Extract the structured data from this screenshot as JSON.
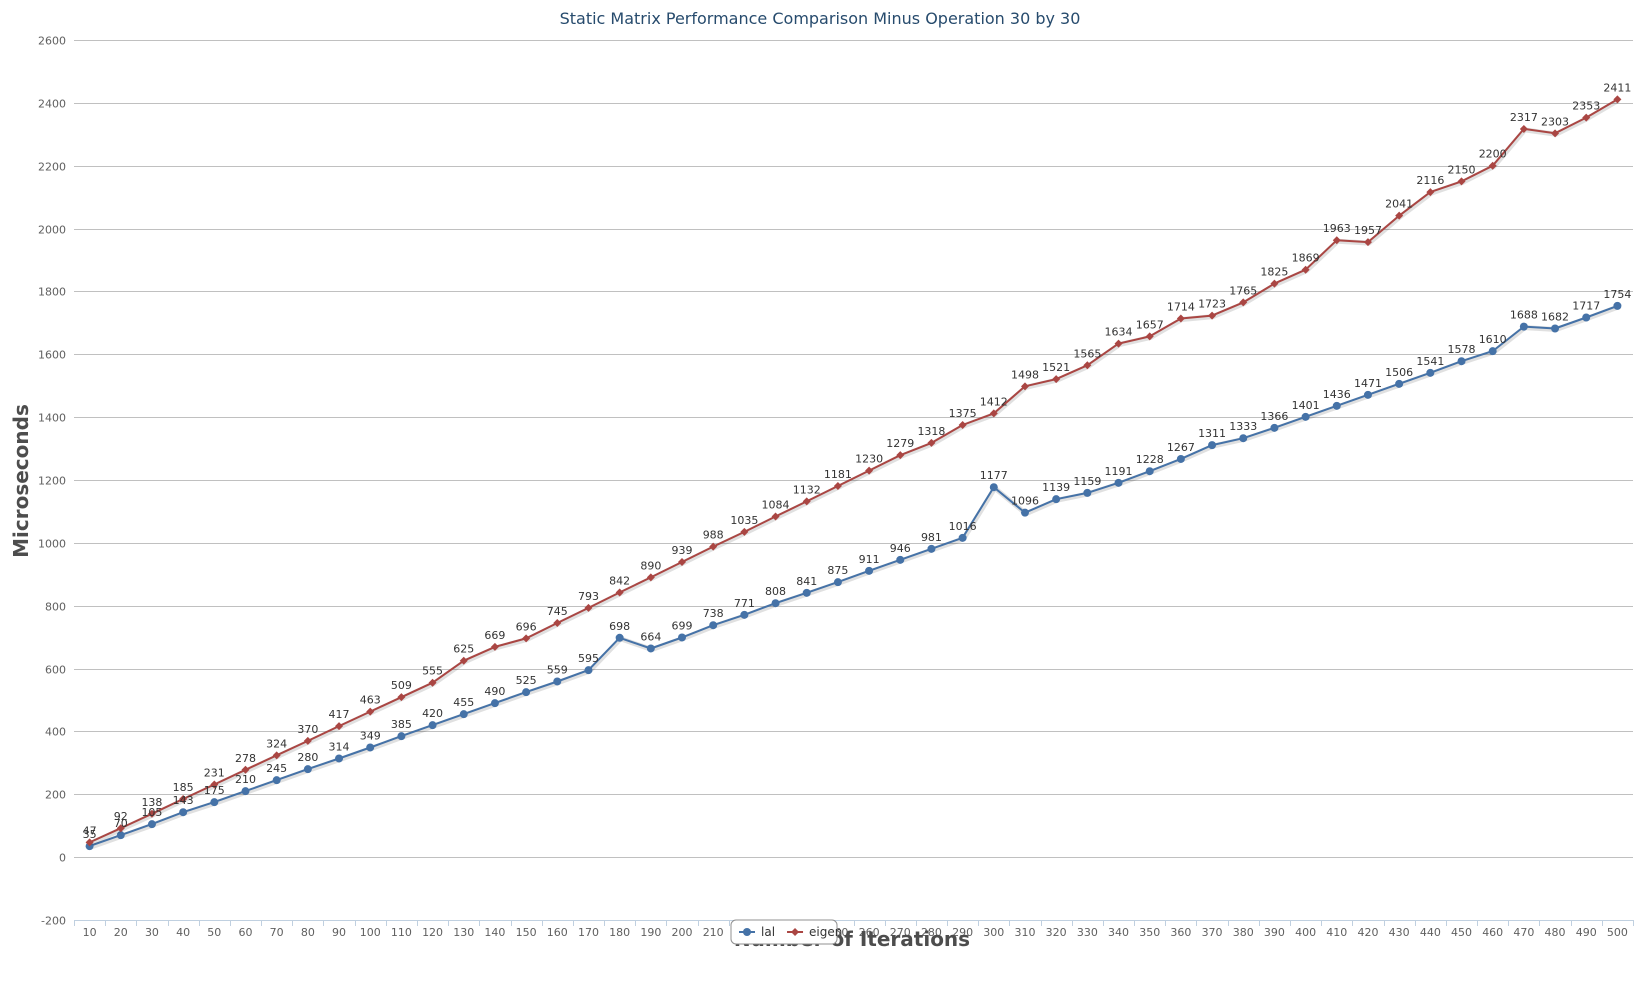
{
  "chart_data": {
    "type": "line",
    "title": "Static Matrix Performance Comparison Minus Operation 30 by 30",
    "xlabel": "Number of Iterations",
    "ylabel": "Microseconds",
    "ylim": [
      -200,
      2600
    ],
    "yticks": [
      -200,
      0,
      200,
      400,
      600,
      800,
      1000,
      1200,
      1400,
      1600,
      1800,
      2000,
      2200,
      2400,
      2600
    ],
    "grid": "horizontal",
    "legend_position": "bottom-center",
    "categories": [
      "10",
      "20",
      "30",
      "40",
      "50",
      "60",
      "70",
      "80",
      "90",
      "100",
      "110",
      "120",
      "130",
      "140",
      "150",
      "160",
      "170",
      "180",
      "190",
      "200",
      "210",
      "220",
      "230",
      "240",
      "250",
      "260",
      "270",
      "280",
      "290",
      "300",
      "310",
      "320",
      "330",
      "340",
      "350",
      "360",
      "370",
      "380",
      "390",
      "400",
      "410",
      "420",
      "430",
      "440",
      "450",
      "460",
      "470",
      "480",
      "490",
      "500"
    ],
    "series": [
      {
        "name": "lal",
        "color": "#4572a7",
        "marker": "circle",
        "values": [
          35,
          70,
          105,
          143,
          175,
          210,
          245,
          280,
          314,
          349,
          385,
          420,
          455,
          490,
          525,
          559,
          595,
          698,
          664,
          699,
          738,
          771,
          808,
          841,
          875,
          911,
          946,
          981,
          1016,
          1177,
          1096,
          1139,
          1159,
          1191,
          1228,
          1267,
          1311,
          1333,
          1366,
          1401,
          1436,
          1471,
          1506,
          1541,
          1578,
          1610,
          1688,
          1682,
          1717,
          1754
        ]
      },
      {
        "name": "eigen",
        "color": "#aa4643",
        "marker": "diamond",
        "values": [
          47,
          92,
          138,
          185,
          231,
          278,
          324,
          370,
          417,
          463,
          509,
          555,
          625,
          669,
          696,
          745,
          793,
          842,
          890,
          939,
          988,
          1035,
          1084,
          1132,
          1181,
          1230,
          1279,
          1318,
          1375,
          1412,
          1498,
          1521,
          1565,
          1634,
          1657,
          1714,
          1723,
          1765,
          1825,
          1869,
          1963,
          1957,
          2041,
          2116,
          2150,
          2200,
          2317,
          2303,
          2353,
          2411
        ]
      }
    ]
  }
}
